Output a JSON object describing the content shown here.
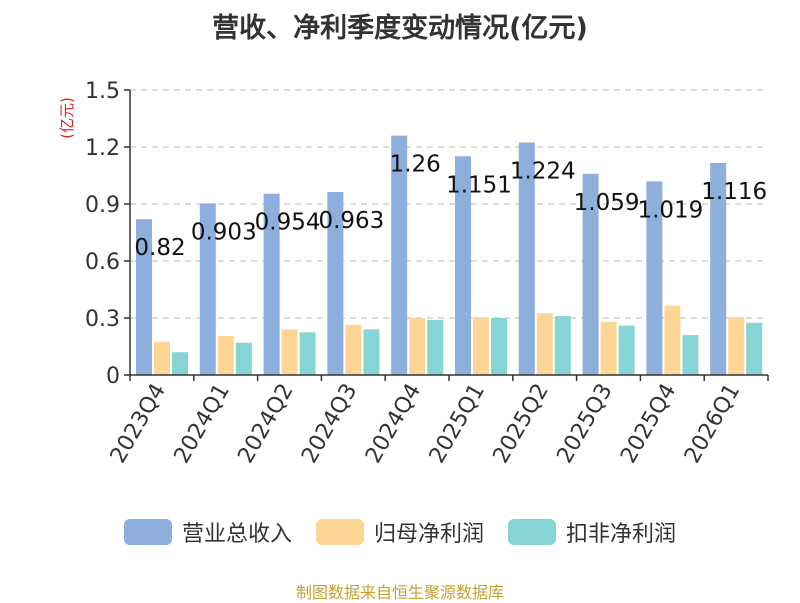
{
  "chart_data": {
    "type": "bar",
    "title": "营收、净利季度变动情况(亿元)",
    "ylabel": "(亿元)",
    "ylim": [
      0,
      1.5
    ],
    "yticks": [
      "0",
      "0.3",
      "0.6",
      "0.9",
      "1.2",
      "1.5"
    ],
    "grid": true,
    "legend_position": "bottom",
    "categories": [
      "2023Q4",
      "2024Q1",
      "2024Q2",
      "2024Q3",
      "2024Q4",
      "2025Q1",
      "2025Q2",
      "2025Q3",
      "2025Q4",
      "2026Q1"
    ],
    "data_labels": [
      "0.82",
      "0.903",
      "0.954",
      "0.963",
      "1.26",
      "1.151",
      "1.224",
      "1.059",
      "1.019",
      "1.116"
    ],
    "series": [
      {
        "name": "营业总收入",
        "color": "#8eaedc",
        "values": [
          0.82,
          0.903,
          0.954,
          0.963,
          1.26,
          1.151,
          1.224,
          1.059,
          1.019,
          1.116
        ]
      },
      {
        "name": "归母净利润",
        "color": "#fdd696",
        "values": [
          0.175,
          0.205,
          0.24,
          0.265,
          0.3,
          0.305,
          0.325,
          0.28,
          0.365,
          0.305
        ]
      },
      {
        "name": "扣非净利润",
        "color": "#86d4d4",
        "values": [
          0.12,
          0.17,
          0.225,
          0.24,
          0.29,
          0.3,
          0.31,
          0.26,
          0.21,
          0.275
        ]
      }
    ]
  },
  "source": "制图数据来自恒生聚源数据库"
}
